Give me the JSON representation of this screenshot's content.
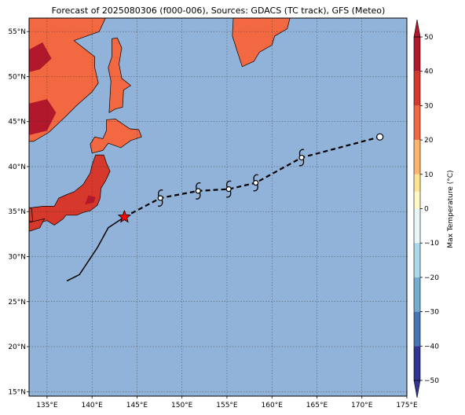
{
  "title": "Forecast of 2025080306 (f000-006), Sources: GDACS (TC track), GFS (Meteo)",
  "map": {
    "lon_range": [
      133,
      175
    ],
    "lat_range": [
      14.5,
      56.5
    ],
    "lon_ticks": [
      {
        "value": 135,
        "label": "135°E"
      },
      {
        "value": 140,
        "label": "140°E"
      },
      {
        "value": 145,
        "label": "145°E"
      },
      {
        "value": 150,
        "label": "150°E"
      },
      {
        "value": 155,
        "label": "155°E"
      },
      {
        "value": 160,
        "label": "160°E"
      },
      {
        "value": 165,
        "label": "165°E"
      },
      {
        "value": 170,
        "label": "170°E"
      },
      {
        "value": 175,
        "label": "175°E"
      }
    ],
    "lat_ticks": [
      {
        "value": 15,
        "label": "15°N"
      },
      {
        "value": 20,
        "label": "20°N"
      },
      {
        "value": 25,
        "label": "25°N"
      },
      {
        "value": 30,
        "label": "30°N"
      },
      {
        "value": 35,
        "label": "35°N"
      },
      {
        "value": 40,
        "label": "40°N"
      },
      {
        "value": 45,
        "label": "45°N"
      },
      {
        "value": 50,
        "label": "50°N"
      },
      {
        "value": 55,
        "label": "55°N"
      }
    ],
    "gridlines": true,
    "ocean_color": "#92b3d9"
  },
  "colorbar": {
    "label": "Max Temperature (°C)",
    "min": -50,
    "max": 50,
    "ticks": [
      {
        "value": 50,
        "label": "50"
      },
      {
        "value": 40,
        "label": "40"
      },
      {
        "value": 30,
        "label": "30"
      },
      {
        "value": 20,
        "label": "20"
      },
      {
        "value": 10,
        "label": "10"
      },
      {
        "value": 0,
        "label": "0"
      },
      {
        "value": -10,
        "label": "−10"
      },
      {
        "value": -20,
        "label": "−20"
      },
      {
        "value": -30,
        "label": "−30"
      },
      {
        "value": -40,
        "label": "−40"
      },
      {
        "value": -50,
        "label": "−50"
      }
    ],
    "bins": [
      {
        "from": 40,
        "to": 50,
        "color": "#b2182b"
      },
      {
        "from": 30,
        "to": 40,
        "color": "#d6382c"
      },
      {
        "from": 20,
        "to": 30,
        "color": "#f26841"
      },
      {
        "from": 10,
        "to": 20,
        "color": "#fdb46d"
      },
      {
        "from": 5,
        "to": 10,
        "color": "#fee393"
      },
      {
        "from": 0,
        "to": 5,
        "color": "#fff8c4"
      },
      {
        "from": -10,
        "to": 0,
        "color": "#e8f6f8"
      },
      {
        "from": -20,
        "to": -10,
        "color": "#abd9e9"
      },
      {
        "from": -30,
        "to": -20,
        "color": "#74add1"
      },
      {
        "from": -40,
        "to": -30,
        "color": "#4575b4"
      },
      {
        "from": -50,
        "to": -40,
        "color": "#313695"
      }
    ]
  },
  "track": {
    "observed": [
      [
        137.2,
        27.3
      ],
      [
        138.6,
        28.0
      ],
      [
        140.6,
        31.0
      ],
      [
        141.8,
        33.2
      ],
      [
        143.6,
        34.4
      ]
    ],
    "forecast": [
      [
        143.6,
        34.4
      ],
      [
        147.6,
        36.5
      ],
      [
        151.8,
        37.3
      ],
      [
        155.2,
        37.5
      ],
      [
        158.2,
        38.2
      ],
      [
        163.3,
        41.0
      ],
      [
        172.0,
        43.3
      ]
    ],
    "current_position": [
      143.6,
      34.4
    ],
    "storm_symbols": [
      [
        147.6,
        36.5
      ],
      [
        151.8,
        37.3
      ],
      [
        155.2,
        37.5
      ],
      [
        158.2,
        38.2
      ],
      [
        163.3,
        41.0
      ]
    ],
    "end_marker": [
      172.0,
      43.3
    ],
    "observed_style": "solid",
    "forecast_style": "dashed",
    "star_color": "#ff0000"
  },
  "land": [
    {
      "name": "honshu",
      "temp_class": 30,
      "coords": [
        [
          130.9,
          34.2
        ],
        [
          132.0,
          34.6
        ],
        [
          133.0,
          35.4
        ],
        [
          134.6,
          35.6
        ],
        [
          135.8,
          35.6
        ],
        [
          136.3,
          36.5
        ],
        [
          137.2,
          36.9
        ],
        [
          138.0,
          37.2
        ],
        [
          139.0,
          38.0
        ],
        [
          139.8,
          39.3
        ],
        [
          140.0,
          40.2
        ],
        [
          140.4,
          41.3
        ],
        [
          141.3,
          41.3
        ],
        [
          141.6,
          40.4
        ],
        [
          142.0,
          39.5
        ],
        [
          141.5,
          38.4
        ],
        [
          141.0,
          37.6
        ],
        [
          140.9,
          36.5
        ],
        [
          140.6,
          35.7
        ],
        [
          139.8,
          35.1
        ],
        [
          139.0,
          34.9
        ],
        [
          138.3,
          34.6
        ],
        [
          137.1,
          34.6
        ],
        [
          136.8,
          34.2
        ],
        [
          135.8,
          33.5
        ],
        [
          135.0,
          34.0
        ],
        [
          133.6,
          33.6
        ],
        [
          132.5,
          33.8
        ],
        [
          131.0,
          33.9
        ]
      ]
    },
    {
      "name": "kyushu",
      "temp_class": 30,
      "coords": [
        [
          133.0,
          33.8
        ],
        [
          134.7,
          34.2
        ],
        [
          134.2,
          33.2
        ],
        [
          133.0,
          32.8
        ],
        [
          132.4,
          32.3
        ],
        [
          131.3,
          31.4
        ],
        [
          130.3,
          31.1
        ],
        [
          130.1,
          32.5
        ],
        [
          129.7,
          33.2
        ],
        [
          130.7,
          33.9
        ]
      ]
    },
    {
      "name": "hokkaido",
      "temp_class": 20,
      "coords": [
        [
          140.0,
          41.5
        ],
        [
          141.2,
          41.8
        ],
        [
          141.8,
          42.6
        ],
        [
          143.2,
          42.1
        ],
        [
          144.3,
          42.9
        ],
        [
          145.5,
          43.3
        ],
        [
          145.2,
          44.1
        ],
        [
          144.2,
          44.2
        ],
        [
          142.6,
          45.3
        ],
        [
          141.6,
          45.2
        ],
        [
          141.6,
          44.0
        ],
        [
          141.2,
          43.1
        ],
        [
          140.3,
          43.3
        ],
        [
          139.8,
          42.5
        ]
      ]
    },
    {
      "name": "sakhalin",
      "temp_class": 20,
      "coords": [
        [
          141.9,
          46.0
        ],
        [
          142.6,
          46.4
        ],
        [
          143.4,
          46.6
        ],
        [
          143.5,
          48.5
        ],
        [
          144.3,
          49.0
        ],
        [
          143.3,
          49.8
        ],
        [
          143.0,
          51.4
        ],
        [
          143.3,
          53.2
        ],
        [
          142.8,
          54.3
        ],
        [
          142.2,
          54.2
        ],
        [
          142.2,
          52.2
        ],
        [
          141.8,
          51.0
        ],
        [
          142.1,
          49.5
        ],
        [
          142.0,
          47.8
        ]
      ]
    },
    {
      "name": "mainland",
      "temp_class": 20,
      "coords": [
        [
          133.0,
          56.5
        ],
        [
          141.5,
          56.5
        ],
        [
          140.8,
          55.0
        ],
        [
          138.0,
          54.0
        ],
        [
          140.3,
          52.2
        ],
        [
          140.3,
          51.0
        ],
        [
          140.7,
          49.3
        ],
        [
          140.0,
          48.3
        ],
        [
          138.3,
          46.8
        ],
        [
          137.0,
          45.5
        ],
        [
          135.2,
          43.8
        ],
        [
          133.5,
          42.8
        ],
        [
          133.0,
          42.8
        ]
      ]
    },
    {
      "name": "kamchatka",
      "temp_class": 20,
      "coords": [
        [
          155.7,
          56.5
        ],
        [
          155.6,
          54.5
        ],
        [
          156.4,
          52.0
        ],
        [
          156.7,
          51.1
        ],
        [
          158.0,
          51.7
        ],
        [
          158.6,
          52.7
        ],
        [
          160.0,
          53.5
        ],
        [
          160.3,
          54.5
        ],
        [
          161.7,
          55.3
        ],
        [
          162.0,
          56.5
        ]
      ]
    },
    {
      "name": "korea",
      "temp_class": 30,
      "coords": [
        [
          133.0,
          35.5
        ],
        [
          133.0,
          34.0
        ],
        [
          133.4,
          33.9
        ],
        [
          133.3,
          35.3
        ]
      ]
    }
  ],
  "heat_patches": [
    {
      "temp_class": 40,
      "coords": [
        [
          139.2,
          35.8
        ],
        [
          140.2,
          36.0
        ],
        [
          140.4,
          36.6
        ],
        [
          139.6,
          36.8
        ]
      ]
    },
    {
      "temp_class": 40,
      "coords": [
        [
          133.0,
          47.0
        ],
        [
          135.0,
          47.5
        ],
        [
          136.0,
          46.0
        ],
        [
          135.0,
          44.0
        ],
        [
          133.0,
          43.5
        ]
      ]
    },
    {
      "temp_class": 40,
      "coords": [
        [
          133.0,
          53.0
        ],
        [
          134.5,
          53.8
        ],
        [
          135.5,
          52.0
        ],
        [
          134.2,
          50.8
        ],
        [
          133.0,
          50.5
        ]
      ]
    }
  ]
}
